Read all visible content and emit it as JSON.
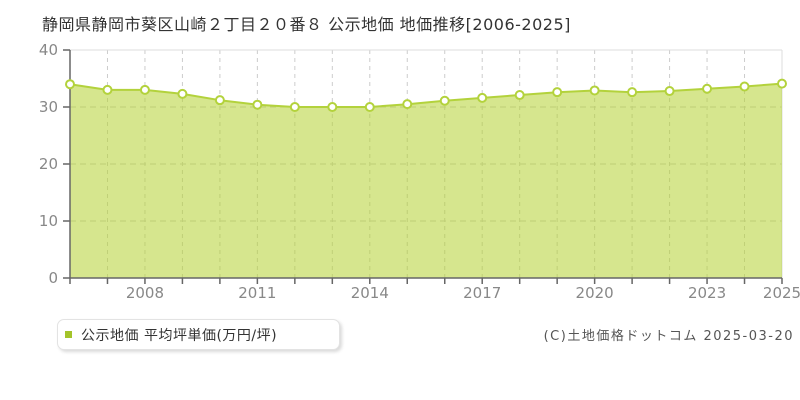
{
  "title": "静岡県静岡市葵区山崎２丁目２０番８ 公示地価 地価推移[2006-2025]",
  "legend": {
    "label": "公示地価 平均坪単価(万円/坪)"
  },
  "copyright": "(C)土地価格ドットコム 2025-03-20",
  "colors": {
    "area_fill": "rgba(180,210,50,0.55)",
    "line": "#b3d23c",
    "marker_fill": "#ffffff",
    "marker_stroke": "#b3d23c",
    "legend_swatch": "#a4c42a",
    "grid": "#cccccc",
    "plot_border": "#dddddd",
    "axis": "#666666",
    "tick_label": "#888888"
  },
  "chart_data": {
    "type": "area",
    "title": "静岡県静岡市葵区山崎２丁目２０番８ 公示地価 地価推移[2006-2025]",
    "series_name": "公示地価 平均坪単価(万円/坪)",
    "x": [
      2006,
      2007,
      2008,
      2009,
      2010,
      2011,
      2012,
      2013,
      2014,
      2015,
      2016,
      2017,
      2018,
      2019,
      2020,
      2021,
      2022,
      2023,
      2024,
      2025
    ],
    "values": [
      34.0,
      33.0,
      33.0,
      32.3,
      31.2,
      30.4,
      30.0,
      30.0,
      30.0,
      30.5,
      31.1,
      31.6,
      32.1,
      32.6,
      32.9,
      32.6,
      32.8,
      33.2,
      33.6,
      34.1
    ],
    "xlabel": "",
    "ylabel": "",
    "ylim": [
      0,
      40
    ],
    "yticks": [
      0,
      10,
      20,
      30,
      40
    ],
    "xtick_labels": [
      2008,
      2011,
      2014,
      2017,
      2020,
      2023,
      2025
    ],
    "grid": true,
    "legend_position": "bottom-left"
  }
}
